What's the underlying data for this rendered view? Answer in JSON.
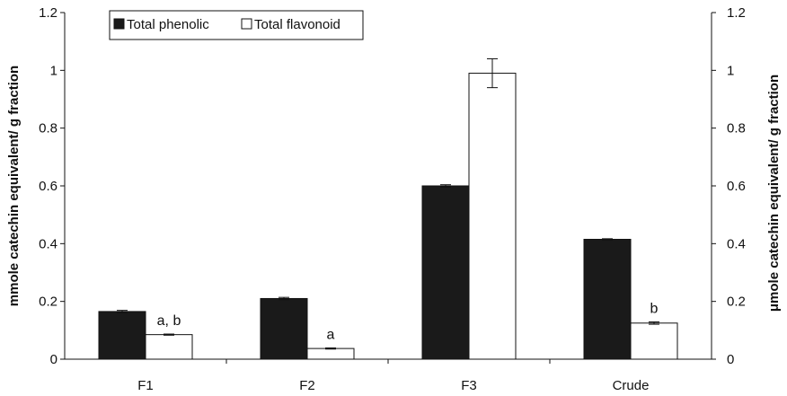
{
  "chart_data": {
    "type": "bar",
    "categories": [
      "F1",
      "F2",
      "F3",
      "Crude"
    ],
    "series": [
      {
        "name": "Total phenolic",
        "axis": "left",
        "values": [
          0.165,
          0.21,
          0.6,
          0.415
        ],
        "errors": [
          0.004,
          0.004,
          0.004,
          0.002
        ],
        "color": "#1a1a1a"
      },
      {
        "name": "Total flavonoid",
        "axis": "right",
        "values": [
          0.085,
          0.037,
          0.99,
          0.125
        ],
        "errors": [
          0.002,
          0.002,
          0.05,
          0.004
        ],
        "color": "#ffffff"
      }
    ],
    "annotations": [
      "a, b",
      "a",
      "",
      "b"
    ],
    "ylabel_left": "mmole catechin equivalent/ g fraction",
    "ylabel_right": "μmole catechin equivalent/ g fraction",
    "ylim": [
      0,
      1.2
    ],
    "y2lim": [
      0,
      1.2
    ],
    "yticks": [
      "0",
      "0.2",
      "0.4",
      "0.6",
      "0.8",
      "1",
      "1.2"
    ],
    "y2ticks": [
      "0",
      "0.2",
      "0.4",
      "0.6",
      "0.8",
      "1",
      "1.2"
    ],
    "legend_position": "top-left",
    "grid": false
  }
}
